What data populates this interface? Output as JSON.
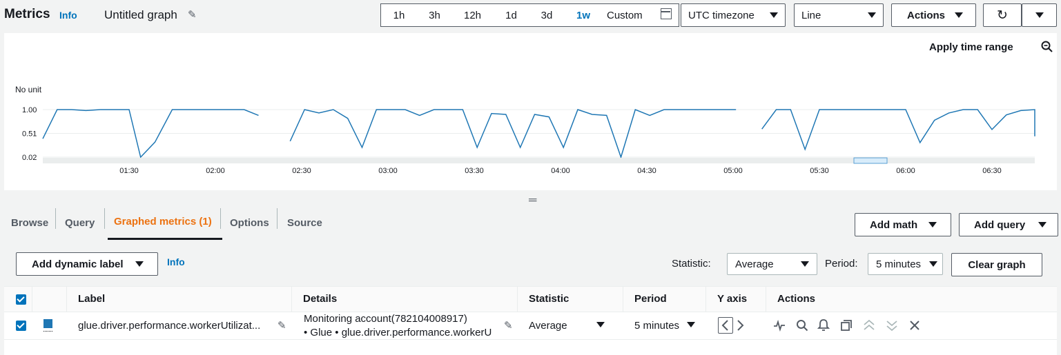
{
  "header": {
    "title": "Metrics",
    "info": "Info",
    "graph_name": "Untitled graph"
  },
  "time_ranges": [
    {
      "label": "1h",
      "active": false
    },
    {
      "label": "3h",
      "active": false
    },
    {
      "label": "12h",
      "active": false
    },
    {
      "label": "1d",
      "active": false
    },
    {
      "label": "3d",
      "active": false
    },
    {
      "label": "1w",
      "active": true
    },
    {
      "label": "Custom",
      "active": false
    }
  ],
  "timezone": "UTC timezone",
  "chart_type": "Line",
  "actions_label": "Actions",
  "apply_time_range": "Apply time range",
  "chart_data": {
    "type": "line",
    "ylabel": "No unit",
    "yticks": [
      "1.00",
      "0.51",
      "0.02"
    ],
    "ylim": [
      0.02,
      1.0
    ],
    "xticks": [
      "01:30",
      "02:00",
      "02:30",
      "03:00",
      "03:30",
      "04:00",
      "04:30",
      "05:00",
      "05:30",
      "06:00",
      "06:30"
    ],
    "xlim": [
      "01:00",
      "06:45"
    ],
    "series": [
      {
        "color": "#1f77b4",
        "segments": [
          [
            [
              "01:00",
              0.4
            ],
            [
              "01:05",
              1.0
            ],
            [
              "01:10",
              1.0
            ],
            [
              "01:15",
              0.98
            ],
            [
              "01:20",
              1.0
            ],
            [
              "01:25",
              1.0
            ],
            [
              "01:30",
              1.0
            ],
            [
              "01:34",
              0.02
            ],
            [
              "01:39",
              0.33
            ],
            [
              "01:45",
              1.0
            ],
            [
              "01:50",
              1.0
            ],
            [
              "01:55",
              1.0
            ],
            [
              "02:00",
              1.0
            ],
            [
              "02:05",
              1.0
            ],
            [
              "02:10",
              1.0
            ],
            [
              "02:15",
              0.88
            ]
          ],
          [
            [
              "02:26",
              0.35
            ],
            [
              "02:31",
              1.0
            ],
            [
              "02:36",
              0.93
            ],
            [
              "02:41",
              1.0
            ],
            [
              "02:46",
              0.82
            ],
            [
              "02:51",
              0.22
            ],
            [
              "02:56",
              1.0
            ],
            [
              "03:01",
              1.0
            ],
            [
              "03:06",
              1.0
            ],
            [
              "03:11",
              0.88
            ],
            [
              "03:16",
              1.0
            ],
            [
              "03:21",
              1.0
            ],
            [
              "03:26",
              1.0
            ],
            [
              "03:31",
              0.22
            ],
            [
              "03:36",
              0.92
            ],
            [
              "03:41",
              0.9
            ],
            [
              "03:46",
              0.22
            ],
            [
              "03:51",
              0.9
            ],
            [
              "03:56",
              0.85
            ],
            [
              "04:01",
              0.22
            ],
            [
              "04:06",
              1.0
            ],
            [
              "04:11",
              0.9
            ],
            [
              "04:16",
              0.88
            ],
            [
              "04:21",
              0.02
            ],
            [
              "04:26",
              1.0
            ],
            [
              "04:31",
              0.88
            ],
            [
              "04:36",
              1.0
            ],
            [
              "04:41",
              1.0
            ],
            [
              "04:46",
              1.0
            ],
            [
              "04:51",
              1.0
            ],
            [
              "04:56",
              1.0
            ],
            [
              "05:01",
              1.0
            ]
          ],
          [
            [
              "05:10",
              0.6
            ],
            [
              "05:15",
              1.0
            ],
            [
              "05:20",
              1.0
            ],
            [
              "05:25",
              0.18
            ],
            [
              "05:30",
              1.0
            ],
            [
              "05:35",
              1.0
            ],
            [
              "05:40",
              1.0
            ],
            [
              "05:45",
              1.0
            ],
            [
              "05:50",
              1.0
            ],
            [
              "05:55",
              1.0
            ],
            [
              "06:00",
              1.0
            ],
            [
              "06:05",
              0.32
            ],
            [
              "06:10",
              0.78
            ],
            [
              "06:15",
              0.93
            ],
            [
              "06:20",
              1.0
            ],
            [
              "06:25",
              1.0
            ],
            [
              "06:30",
              0.59
            ],
            [
              "06:35",
              0.89
            ],
            [
              "06:40",
              0.98
            ],
            [
              "06:45",
              1.0
            ],
            [
              "06:50",
              0.45
            ]
          ]
        ]
      }
    ]
  },
  "tabs": [
    {
      "label": "Browse",
      "active": false
    },
    {
      "label": "Query",
      "active": false
    },
    {
      "label": "Graphed metrics (1)",
      "active": true
    },
    {
      "label": "Options",
      "active": false
    },
    {
      "label": "Source",
      "active": false
    }
  ],
  "add_math": "Add math",
  "add_query": "Add query",
  "add_dynamic_label": "Add dynamic label",
  "info2": "Info",
  "statistic_label": "Statistic:",
  "statistic_value": "Average",
  "period_label": "Period:",
  "period_value": "5 minutes",
  "clear_graph": "Clear graph",
  "table": {
    "headers": {
      "label": "Label",
      "details": "Details",
      "statistic": "Statistic",
      "period": "Period",
      "yaxis": "Y axis",
      "actions": "Actions"
    },
    "rows": [
      {
        "label": "glue.driver.performance.workerUtilizat...",
        "details_line1": "Monitoring account(782104008917)",
        "details_line2": "• Glue • glue.driver.performance.workerU",
        "statistic": "Average",
        "period": "5 minutes"
      }
    ]
  }
}
